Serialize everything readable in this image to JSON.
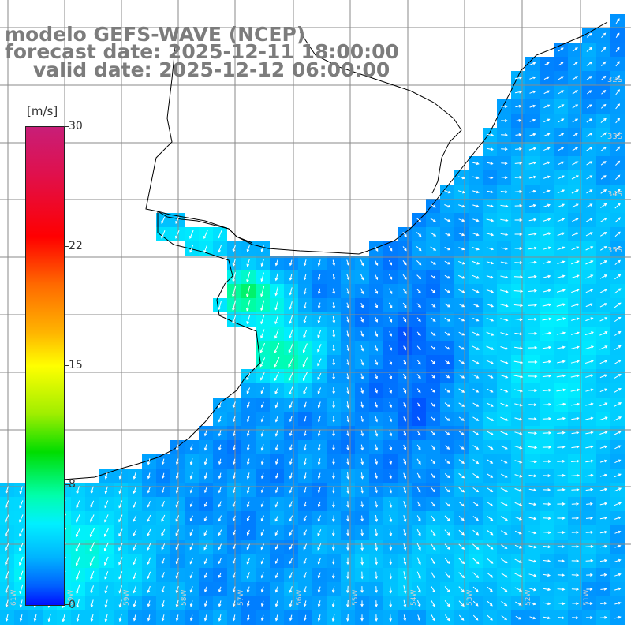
{
  "title": {
    "model": "modelo GEFS-WAVE (NCEP)",
    "forecast": "forecast date: 2025-12-11 18:00:00",
    "valid": "valid date: 2025-12-12 06:00:00"
  },
  "colorbar": {
    "units": "[m/s]",
    "min": 0,
    "max": 30,
    "ticks": [
      "30",
      "22",
      "15",
      "8",
      "0"
    ],
    "tick_values": [
      30,
      22,
      15,
      8,
      0
    ],
    "colors": [
      "#0010ff",
      "#0060ff",
      "#00b4ff",
      "#00f0ff",
      "#00ffaa",
      "#00dd00",
      "#a0ee00",
      "#ffff00",
      "#ffb400",
      "#ff6a00",
      "#ff0000",
      "#e0104c",
      "#c81e78"
    ]
  },
  "grid": {
    "latitude_labels": [
      "32S",
      "33S",
      "34S",
      "35S"
    ],
    "longitude_labels": [
      "61W",
      "60W",
      "59W",
      "58W",
      "57W",
      "56W",
      "55W",
      "54W",
      "53W",
      "52W",
      "51W"
    ]
  },
  "wind_field": {
    "description_units": "m/s",
    "land_color": "#ffffff",
    "coast_color": "#000000",
    "grid_color": "#888888",
    "arrow_color": "#ffffff"
  }
}
